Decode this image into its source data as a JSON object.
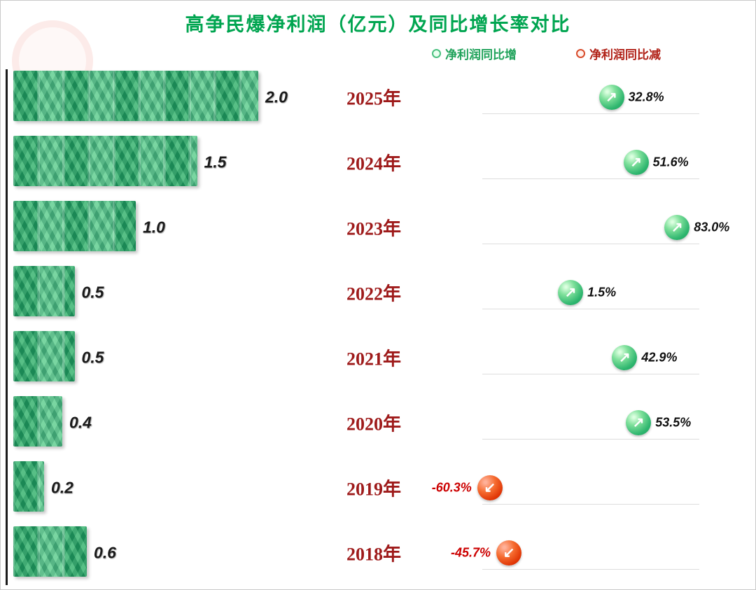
{
  "page": {
    "title": "高争民爆净利润（亿元）及同比增长率对比"
  },
  "chart_data": {
    "type": "bar",
    "orientation": "horizontal",
    "title": "高争民爆净利润（亿元）及同比增长率对比",
    "categories": [
      "2025年",
      "2024年",
      "2023年",
      "2022年",
      "2021年",
      "2020年",
      "2019年",
      "2018年"
    ],
    "series": [
      {
        "name": "净利润(亿元)",
        "values": [
          2.0,
          1.5,
          1.0,
          0.5,
          0.5,
          0.4,
          0.2,
          0.6
        ]
      },
      {
        "name": "同比增长率(%)",
        "values": [
          32.8,
          51.6,
          83.0,
          1.5,
          42.9,
          53.5,
          -60.3,
          -45.7
        ]
      }
    ],
    "bar_labels": [
      "2.0",
      "1.5",
      "1.0",
      "0.5",
      "0.5",
      "0.4",
      "0.2",
      "0.6"
    ],
    "growth_labels": [
      "32.8%",
      "51.6%",
      "83.0%",
      "1.5%",
      "42.9%",
      "53.5%",
      "-60.3%",
      "-45.7%"
    ],
    "bar_axis_max": 2.0,
    "growth_axis_range": [
      -65,
      85
    ],
    "legend": [
      {
        "label": "净利润同比增",
        "color": "#1fa25a",
        "direction": "up"
      },
      {
        "label": "净利润同比减",
        "color": "#cc2200",
        "direction": "down"
      }
    ],
    "grid": "row-baselines",
    "legend_position": "top-right",
    "colors": {
      "bar_green": "#34b475",
      "up_icon_green": "#2db56e",
      "down_icon_red": "#dd2f00",
      "year_text": "#9e1a1a",
      "title_green": "#00a550",
      "negative_text": "#cc0000"
    }
  }
}
